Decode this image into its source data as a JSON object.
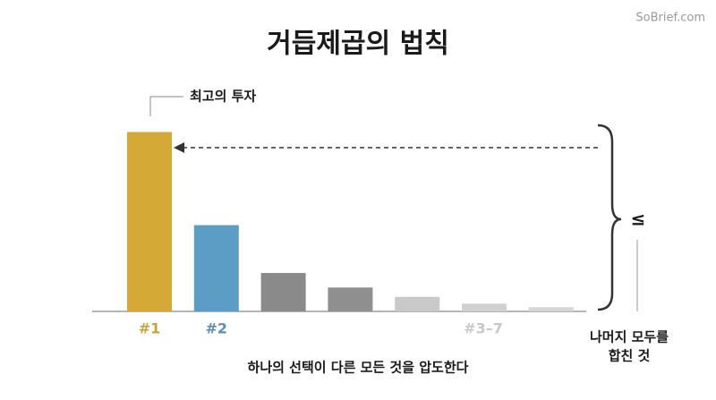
{
  "watermark": "SoBrief.com",
  "chart_data": {
    "type": "bar",
    "title": "거듭제곱의 법칙",
    "categories": [
      "#1",
      "#2",
      null,
      null,
      null,
      null,
      null
    ],
    "values": [
      210,
      101,
      45,
      28,
      17,
      9,
      5
    ],
    "colors": [
      "#d4a935",
      "#5b9dc4",
      "#8a8a8a",
      "#8f8f8f",
      "#c9c9c9",
      "#d0d0d0",
      "#d6d6d6"
    ],
    "label_colors": [
      "#c9a13a",
      "#5b8fb8"
    ],
    "ylim": [
      0,
      220
    ],
    "group_label": "#3–7",
    "top_annotation": "최고의 투자",
    "brace_symbol": "≤",
    "brace_label": [
      "나머지 모두를",
      "합친 것"
    ],
    "caption": "하나의 선택이 다른 모든 것을 압도한다"
  }
}
